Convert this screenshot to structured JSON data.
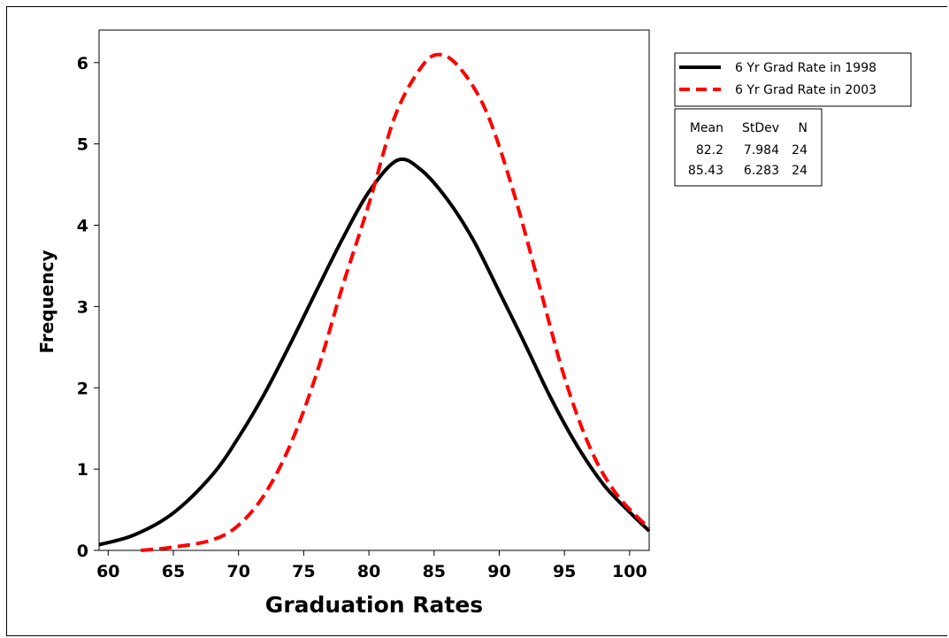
{
  "chart_data": {
    "type": "line",
    "title": "",
    "xlabel": "Graduation Rates",
    "ylabel": "Frequency",
    "xlim": [
      59.3,
      101.5
    ],
    "ylim": [
      0,
      6.4
    ],
    "xticks": [
      60,
      65,
      70,
      75,
      80,
      85,
      90,
      95,
      100
    ],
    "yticks": [
      0,
      1,
      2,
      3,
      4,
      5,
      6
    ],
    "xtick_labels": [
      "60",
      "65",
      "70",
      "75",
      "80",
      "85",
      "90",
      "95",
      "100"
    ],
    "ytick_labels": [
      "0",
      "1",
      "2",
      "3",
      "4",
      "5",
      "6"
    ],
    "grid": false,
    "legend_position": "right",
    "series": [
      {
        "name": "6 Yr Grad Rate in 1998",
        "color": "#000000",
        "style": "solid",
        "x": [
          59.3,
          62,
          65,
          68,
          70,
          72,
          74,
          76,
          78,
          80,
          82.2,
          84,
          86,
          88,
          90,
          92,
          94,
          96,
          98,
          100,
          101.5
        ],
        "y": [
          0.07,
          0.19,
          0.46,
          0.93,
          1.39,
          1.93,
          2.55,
          3.2,
          3.84,
          4.41,
          4.8,
          4.68,
          4.32,
          3.82,
          3.18,
          2.53,
          1.86,
          1.28,
          0.81,
          0.47,
          0.24
        ]
      },
      {
        "name": "6 Yr Grad Rate in 2003",
        "color": "#ff0000",
        "style": "dashed",
        "x": [
          62.5,
          65,
          68,
          70,
          72,
          74,
          76,
          78,
          80,
          82,
          84,
          85.4,
          87,
          89,
          91,
          93,
          95,
          97,
          99,
          101.5
        ],
        "y": [
          0.0,
          0.04,
          0.13,
          0.31,
          0.69,
          1.31,
          2.18,
          3.26,
          4.26,
          5.34,
          5.94,
          6.1,
          5.93,
          5.4,
          4.46,
          3.3,
          2.13,
          1.25,
          0.69,
          0.27
        ]
      }
    ],
    "stats_table": {
      "headers": [
        "Mean",
        "StDev",
        "N"
      ],
      "rows": [
        [
          "82.2",
          "7.984",
          "24"
        ],
        [
          "85.43",
          "6.283",
          "24"
        ]
      ]
    }
  }
}
